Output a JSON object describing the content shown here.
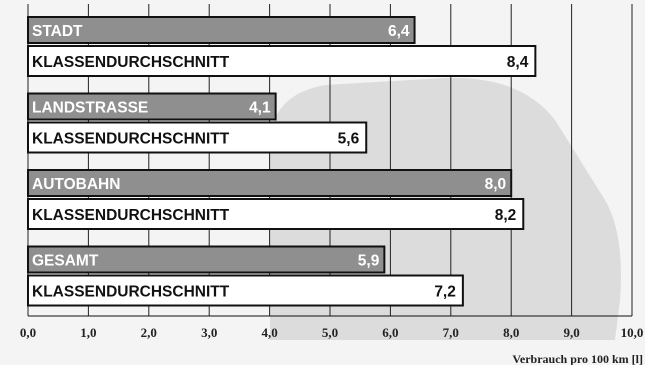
{
  "chart_data": {
    "type": "bar",
    "orientation": "horizontal",
    "xlabel": "Verbrauch pro 100 km [l]",
    "xlim": [
      0,
      10
    ],
    "x_ticks": [
      "0,0",
      "1,0",
      "2,0",
      "3,0",
      "4,0",
      "5,0",
      "6,0",
      "7,0",
      "8,0",
      "9,0",
      "10,0"
    ],
    "grid": "vertical",
    "groups": [
      {
        "category": "STADT",
        "value": 6.4,
        "value_label": "6,4",
        "reference_label": "KLASSENDURCHSCHNITT",
        "reference_value": 8.4,
        "reference_value_label": "8,4"
      },
      {
        "category": "LANDSTRASSE",
        "value": 4.1,
        "value_label": "4,1",
        "reference_label": "KLASSENDURCHSCHNITT",
        "reference_value": 5.6,
        "reference_value_label": "5,6"
      },
      {
        "category": "AUTOBAHN",
        "value": 8.0,
        "value_label": "8,0",
        "reference_label": "KLASSENDURCHSCHNITT",
        "reference_value": 8.2,
        "reference_value_label": "8,2"
      },
      {
        "category": "GESAMT",
        "value": 5.9,
        "value_label": "5,9",
        "reference_label": "KLASSENDURCHSCHNITT",
        "reference_value": 7.2,
        "reference_value_label": "7,2"
      }
    ],
    "colors": {
      "vehicle_bar": "#8f8f8f",
      "reference_bar": "#ffffff",
      "bar_border": "#111111",
      "grid": "#222222",
      "background": "#f4f4f4",
      "watermark": "#dcdcdc"
    }
  }
}
